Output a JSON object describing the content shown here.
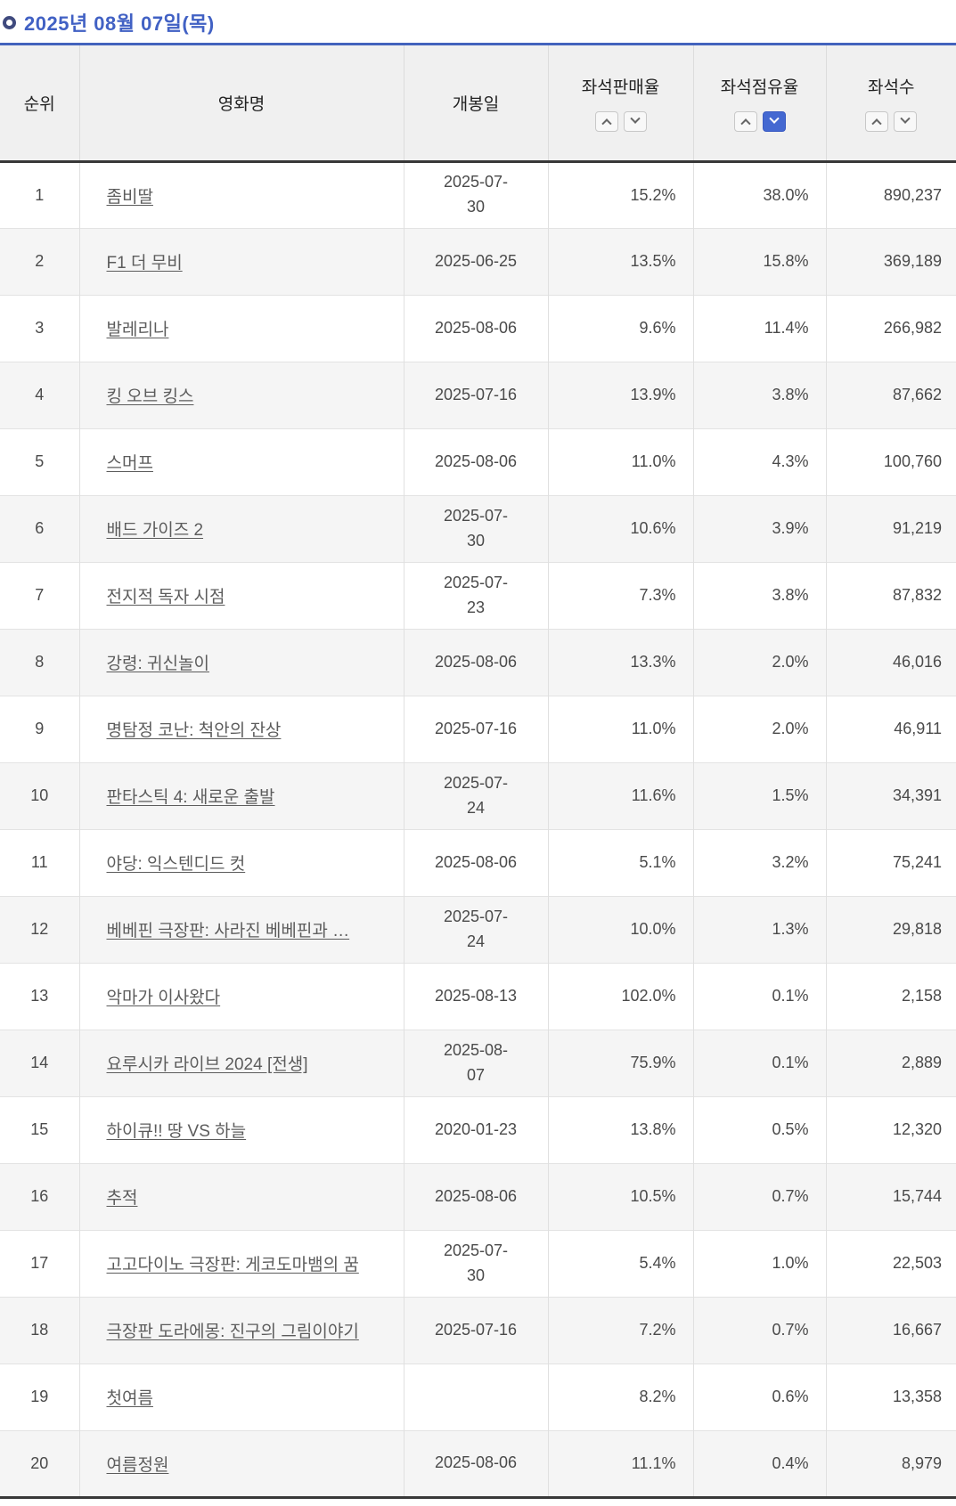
{
  "page": {
    "title": "2025년 08월 07일(목)",
    "accent_line_color": "#4363bd",
    "title_text_color": "#4161c4"
  },
  "icons": {
    "bullet_ring": "ring-circle",
    "sort_asc": "chevron-up",
    "sort_desc": "chevron-down"
  },
  "table": {
    "columns": {
      "rank": "순위",
      "movie": "영화명",
      "date": "개봉일",
      "sales": "좌석판매율",
      "share": "좌석점유율",
      "seats": "좌석수"
    },
    "sort": {
      "column": "share",
      "direction": "desc",
      "active_color": "#4468d1"
    },
    "rows": [
      {
        "rank": "1",
        "movie": "좀비딸",
        "date": "2025-07-30",
        "date_wrap": true,
        "sales": "15.2%",
        "share": "38.0%",
        "seats": "890,237"
      },
      {
        "rank": "2",
        "movie": "F1 더 무비",
        "date": "2025-06-25",
        "date_wrap": false,
        "sales": "13.5%",
        "share": "15.8%",
        "seats": "369,189"
      },
      {
        "rank": "3",
        "movie": "발레리나",
        "date": "2025-08-06",
        "date_wrap": false,
        "sales": "9.6%",
        "share": "11.4%",
        "seats": "266,982"
      },
      {
        "rank": "4",
        "movie": "킹 오브 킹스",
        "date": "2025-07-16",
        "date_wrap": false,
        "sales": "13.9%",
        "share": "3.8%",
        "seats": "87,662"
      },
      {
        "rank": "5",
        "movie": "스머프",
        "date": "2025-08-06",
        "date_wrap": false,
        "sales": "11.0%",
        "share": "4.3%",
        "seats": "100,760"
      },
      {
        "rank": "6",
        "movie": "배드 가이즈 2",
        "date": "2025-07-30",
        "date_wrap": true,
        "sales": "10.6%",
        "share": "3.9%",
        "seats": "91,219"
      },
      {
        "rank": "7",
        "movie": "전지적 독자 시점",
        "date": "2025-07-23",
        "date_wrap": true,
        "sales": "7.3%",
        "share": "3.8%",
        "seats": "87,832"
      },
      {
        "rank": "8",
        "movie": "강령: 귀신놀이",
        "date": "2025-08-06",
        "date_wrap": false,
        "sales": "13.3%",
        "share": "2.0%",
        "seats": "46,016"
      },
      {
        "rank": "9",
        "movie": "명탐정 코난: 척안의 잔상",
        "date": "2025-07-16",
        "date_wrap": false,
        "sales": "11.0%",
        "share": "2.0%",
        "seats": "46,911"
      },
      {
        "rank": "10",
        "movie": "판타스틱 4: 새로운 출발",
        "date": "2025-07-24",
        "date_wrap": true,
        "sales": "11.6%",
        "share": "1.5%",
        "seats": "34,391"
      },
      {
        "rank": "11",
        "movie": "야당: 익스텐디드 컷",
        "date": "2025-08-06",
        "date_wrap": false,
        "sales": "5.1%",
        "share": "3.2%",
        "seats": "75,241"
      },
      {
        "rank": "12",
        "movie": "베베핀 극장판: 사라진 베베핀과 …",
        "date": "2025-07-24",
        "date_wrap": true,
        "sales": "10.0%",
        "share": "1.3%",
        "seats": "29,818"
      },
      {
        "rank": "13",
        "movie": "악마가 이사왔다",
        "date": "2025-08-13",
        "date_wrap": false,
        "sales": "102.0%",
        "share": "0.1%",
        "seats": "2,158"
      },
      {
        "rank": "14",
        "movie": "요루시카 라이브 2024 [전생]",
        "date": "2025-08-07",
        "date_wrap": true,
        "sales": "75.9%",
        "share": "0.1%",
        "seats": "2,889"
      },
      {
        "rank": "15",
        "movie": "하이큐!! 땅 VS 하늘",
        "date": "2020-01-23",
        "date_wrap": false,
        "sales": "13.8%",
        "share": "0.5%",
        "seats": "12,320"
      },
      {
        "rank": "16",
        "movie": "추적",
        "date": "2025-08-06",
        "date_wrap": false,
        "sales": "10.5%",
        "share": "0.7%",
        "seats": "15,744"
      },
      {
        "rank": "17",
        "movie": "고고다이노 극장판: 게코도마뱀의 꿈",
        "date": "2025-07-30",
        "date_wrap": true,
        "sales": "5.4%",
        "share": "1.0%",
        "seats": "22,503"
      },
      {
        "rank": "18",
        "movie": "극장판 도라에몽: 진구의 그림이야기",
        "date": "2025-07-16",
        "date_wrap": false,
        "sales": "7.2%",
        "share": "0.7%",
        "seats": "16,667"
      },
      {
        "rank": "19",
        "movie": "첫여름",
        "date": "",
        "date_wrap": false,
        "sales": "8.2%",
        "share": "0.6%",
        "seats": "13,358"
      },
      {
        "rank": "20",
        "movie": "여름정원",
        "date": "2025-08-06",
        "date_wrap": false,
        "sales": "11.1%",
        "share": "0.4%",
        "seats": "8,979"
      }
    ]
  }
}
